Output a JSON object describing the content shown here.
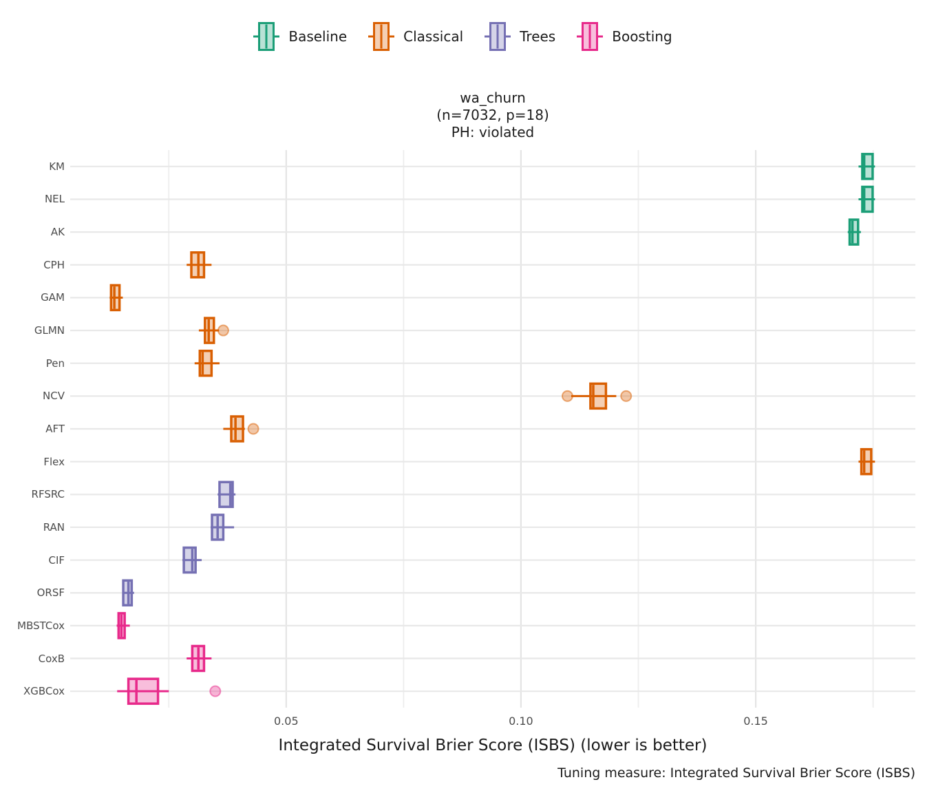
{
  "legend": {
    "items": [
      {
        "label": "Baseline",
        "color": "#1B9E77"
      },
      {
        "label": "Classical",
        "color": "#D95F02"
      },
      {
        "label": "Trees",
        "color": "#7570B3"
      },
      {
        "label": "Boosting",
        "color": "#E7298A"
      }
    ]
  },
  "title": {
    "line1": "wa_churn",
    "line2": "(n=7032, p=18)",
    "line3": "PH: violated"
  },
  "chart_data": {
    "type": "boxplot",
    "orientation": "horizontal",
    "title": "wa_churn (n=7032, p=18) PH: violated",
    "xlabel": "Integrated Survival Brier Score (ISBS) (lower is better)",
    "caption": "Tuning measure: Integrated Survival Brier Score (ISBS)",
    "xlim": [
      0.004,
      0.184
    ],
    "x_ticks": [
      0.05,
      0.1,
      0.15
    ],
    "x_tick_labels": [
      "0.05",
      "0.10",
      "0.15"
    ],
    "x_minor_ticks": [
      0.025,
      0.075,
      0.125,
      0.175
    ],
    "legend_position": "top",
    "grid": true,
    "groups": {
      "Baseline": "#1B9E77",
      "Classical": "#D95F02",
      "Trees": "#7570B3",
      "Boosting": "#E7298A"
    },
    "categories": [
      "KM",
      "NEL",
      "AK",
      "CPH",
      "GAM",
      "GLMN",
      "Pen",
      "NCV",
      "AFT",
      "Flex",
      "RFSRC",
      "RAN",
      "CIF",
      "ORSF",
      "MBSTCox",
      "CoxB",
      "XGBCox"
    ],
    "models": [
      {
        "name": "KM",
        "group": "Baseline",
        "whisker_low": 0.1719,
        "q1": 0.1727,
        "median": 0.1731,
        "q3": 0.1749,
        "whisker_high": 0.1754,
        "outliers": []
      },
      {
        "name": "NEL",
        "group": "Baseline",
        "whisker_low": 0.1719,
        "q1": 0.1727,
        "median": 0.1731,
        "q3": 0.1749,
        "whisker_high": 0.1754,
        "outliers": []
      },
      {
        "name": "AK",
        "group": "Baseline",
        "whisker_low": 0.1696,
        "q1": 0.17,
        "median": 0.1706,
        "q3": 0.1718,
        "whisker_high": 0.1724,
        "outliers": []
      },
      {
        "name": "CPH",
        "group": "Classical",
        "whisker_low": 0.0288,
        "q1": 0.0298,
        "median": 0.0313,
        "q3": 0.0325,
        "whisker_high": 0.0341,
        "outliers": []
      },
      {
        "name": "GAM",
        "group": "Classical",
        "whisker_low": 0.0124,
        "q1": 0.0127,
        "median": 0.0134,
        "q3": 0.0145,
        "whisker_high": 0.0152,
        "outliers": []
      },
      {
        "name": "GLMN",
        "group": "Classical",
        "whisker_low": 0.0314,
        "q1": 0.0327,
        "median": 0.0335,
        "q3": 0.0346,
        "whisker_high": 0.0357,
        "outliers": [
          0.0366
        ]
      },
      {
        "name": "Pen",
        "group": "Classical",
        "whisker_low": 0.0305,
        "q1": 0.0316,
        "median": 0.0322,
        "q3": 0.0341,
        "whisker_high": 0.0358,
        "outliers": []
      },
      {
        "name": "NCV",
        "group": "Classical",
        "whisker_low": 0.1107,
        "q1": 0.1148,
        "median": 0.1154,
        "q3": 0.1181,
        "whisker_high": 0.1203,
        "outliers": [
          0.1099,
          0.1224
        ]
      },
      {
        "name": "AFT",
        "group": "Classical",
        "whisker_low": 0.0366,
        "q1": 0.0383,
        "median": 0.0392,
        "q3": 0.0408,
        "whisker_high": 0.0412,
        "outliers": [
          0.043
        ]
      },
      {
        "name": "Flex",
        "group": "Classical",
        "whisker_low": 0.1719,
        "q1": 0.1725,
        "median": 0.1731,
        "q3": 0.1746,
        "whisker_high": 0.1754,
        "outliers": []
      },
      {
        "name": "RFSRC",
        "group": "Trees",
        "whisker_low": 0.0354,
        "q1": 0.0358,
        "median": 0.0381,
        "q3": 0.0386,
        "whisker_high": 0.0392,
        "outliers": []
      },
      {
        "name": "RAN",
        "group": "Trees",
        "whisker_low": 0.0339,
        "q1": 0.0342,
        "median": 0.0354,
        "q3": 0.0366,
        "whisker_high": 0.0389,
        "outliers": []
      },
      {
        "name": "CIF",
        "group": "Trees",
        "whisker_low": 0.0279,
        "q1": 0.0282,
        "median": 0.03,
        "q3": 0.0307,
        "whisker_high": 0.032,
        "outliers": []
      },
      {
        "name": "ORSF",
        "group": "Trees",
        "whisker_low": 0.0152,
        "q1": 0.0153,
        "median": 0.0164,
        "q3": 0.0171,
        "whisker_high": 0.0176,
        "outliers": []
      },
      {
        "name": "MBSTCox",
        "group": "Boosting",
        "whisker_low": 0.0139,
        "q1": 0.0143,
        "median": 0.0149,
        "q3": 0.0156,
        "whisker_high": 0.0167,
        "outliers": []
      },
      {
        "name": "CoxB",
        "group": "Boosting",
        "whisker_low": 0.0288,
        "q1": 0.03,
        "median": 0.0313,
        "q3": 0.0325,
        "whisker_high": 0.0341,
        "outliers": []
      },
      {
        "name": "XGBCox",
        "group": "Boosting",
        "whisker_low": 0.014,
        "q1": 0.0164,
        "median": 0.0181,
        "q3": 0.0227,
        "whisker_high": 0.025,
        "outliers": [
          0.0349
        ]
      }
    ]
  }
}
